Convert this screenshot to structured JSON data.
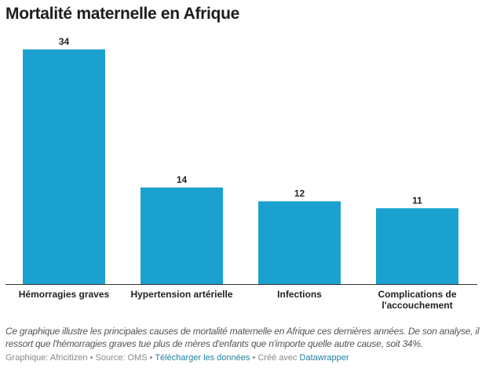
{
  "chart_data": {
    "type": "bar",
    "title": "Mortalité maternelle en Afrique",
    "categories": [
      "Hémorragies graves",
      "Hypertension artérielle",
      "Infections",
      "Complications de l'accouchement"
    ],
    "category_lines": [
      [
        "Hémorragies graves"
      ],
      [
        "Hypertension artérielle"
      ],
      [
        "Infections"
      ],
      [
        "Complications de",
        "l'accouchement"
      ]
    ],
    "values": [
      34,
      14,
      12,
      11
    ],
    "ylim": [
      0,
      34
    ],
    "grid": false,
    "bar_color": "#1ba1cf"
  },
  "description": "Ce graphique illustre les principales causes de mortalité maternelle en Afrique ces dernières années. De son analyse, il ressort que l'hémorragies graves tue plus de mères d'enfants que n'importe quelle autre cause, soit 34%.",
  "footer": {
    "credit": "Graphique: Africitizen • Source: OMS • ",
    "download": "Télécharger les données",
    "sep": " • Créé avec ",
    "tool": "Datawrapper"
  }
}
